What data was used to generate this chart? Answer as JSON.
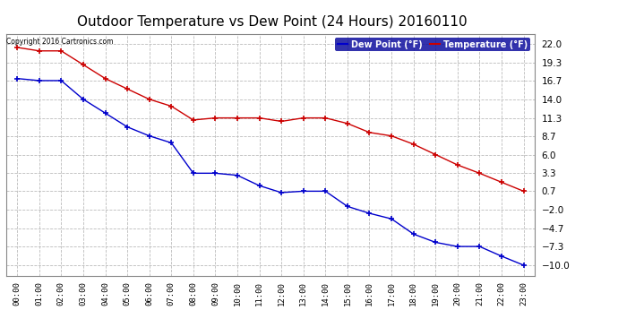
{
  "title": "Outdoor Temperature vs Dew Point (24 Hours) 20160110",
  "copyright": "Copyright 2016 Cartronics.com",
  "hours": [
    "00:00",
    "01:00",
    "02:00",
    "03:00",
    "04:00",
    "05:00",
    "06:00",
    "07:00",
    "08:00",
    "09:00",
    "10:00",
    "11:00",
    "12:00",
    "13:00",
    "14:00",
    "15:00",
    "16:00",
    "17:00",
    "18:00",
    "19:00",
    "20:00",
    "21:00",
    "22:00",
    "23:00"
  ],
  "temperature": [
    21.5,
    21.0,
    21.0,
    19.0,
    17.0,
    15.5,
    14.0,
    13.0,
    11.0,
    11.3,
    11.3,
    11.3,
    10.8,
    11.3,
    11.3,
    10.5,
    9.2,
    8.7,
    7.5,
    6.0,
    4.5,
    3.3,
    2.0,
    0.7
  ],
  "dew_point": [
    17.0,
    16.7,
    16.7,
    14.0,
    12.0,
    10.0,
    8.7,
    7.7,
    3.3,
    3.3,
    3.0,
    1.5,
    0.5,
    0.7,
    0.7,
    -1.5,
    -2.5,
    -3.3,
    -5.5,
    -6.7,
    -7.3,
    -7.3,
    -8.7,
    -10.0
  ],
  "temp_color": "#cc0000",
  "dew_color": "#0000cc",
  "ylim_min": -11.5,
  "ylim_max": 23.5,
  "yticks": [
    22.0,
    19.3,
    16.7,
    14.0,
    11.3,
    8.7,
    6.0,
    3.3,
    0.7,
    -2.0,
    -4.7,
    -7.3,
    -10.0
  ],
  "bg_color": "#ffffff",
  "grid_color": "#bbbbbb",
  "title_fontsize": 11,
  "legend_label_dew": "Dew Point (°F)",
  "legend_label_temp": "Temperature (°F)",
  "legend_bg": "#000099"
}
